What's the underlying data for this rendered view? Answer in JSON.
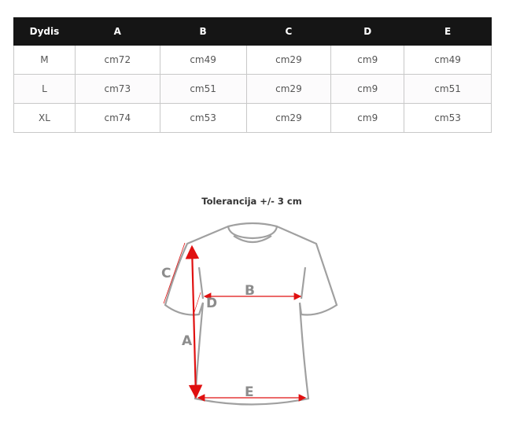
{
  "table": {
    "headers": [
      "Dydis",
      "A",
      "B",
      "C",
      "D",
      "E"
    ],
    "rows": [
      [
        "M",
        "cm72",
        "cm49",
        "cm29",
        "cm9",
        "cm49"
      ],
      [
        "L",
        "cm73",
        "cm51",
        "cm29",
        "cm9",
        "cm51"
      ],
      [
        "XL",
        "cm74",
        "cm53",
        "cm29",
        "cm9",
        "cm53"
      ]
    ]
  },
  "diagram": {
    "title": "Tolerancija +/- 3 cm",
    "labels": {
      "a": "A",
      "b": "B",
      "c": "C",
      "d": "D",
      "e": "E"
    },
    "colors": {
      "outline": "#a0a0a0",
      "arrow": "#e01010"
    }
  }
}
